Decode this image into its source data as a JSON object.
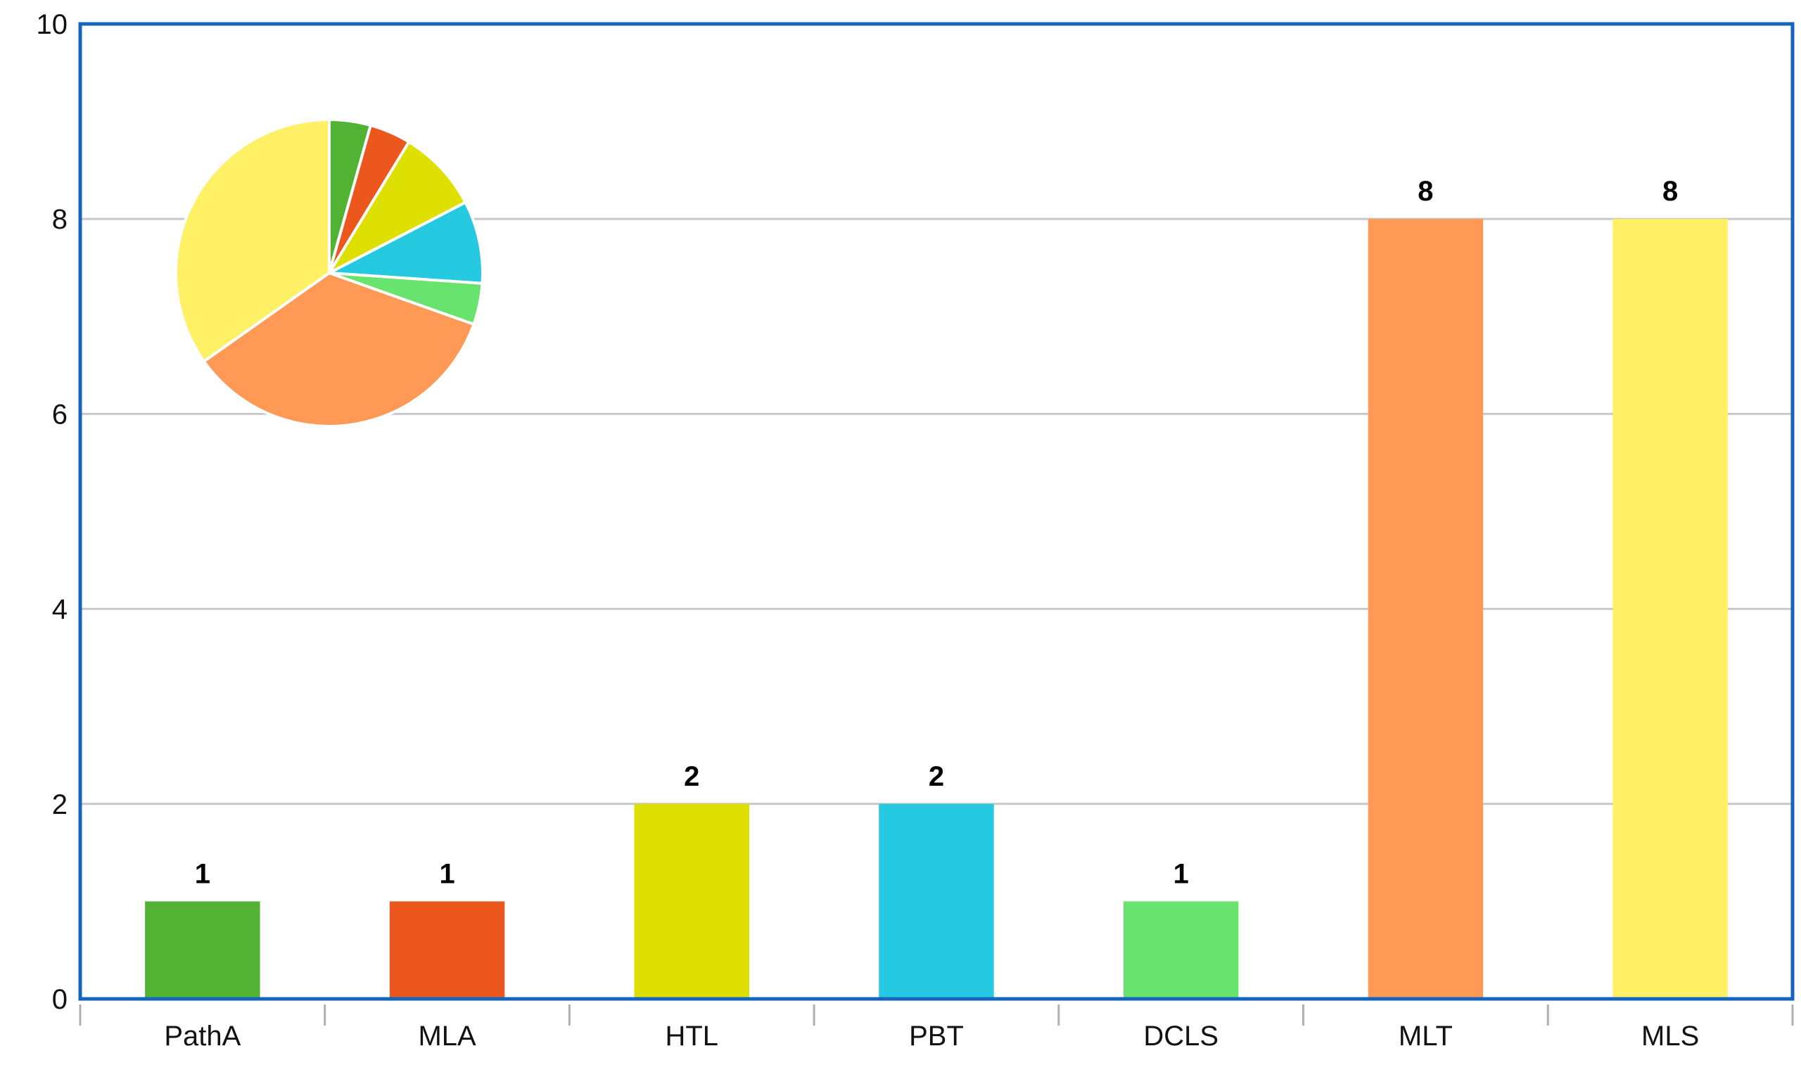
{
  "chart_data": [
    {
      "type": "bar",
      "categories": [
        "PathA",
        "MLA",
        "HTL",
        "PBT",
        "DCLS",
        "MLT",
        "MLS"
      ],
      "values": [
        1,
        1,
        2,
        2,
        1,
        8,
        8
      ],
      "data_labels": [
        "1",
        "1",
        "2",
        "2",
        "1",
        "8",
        "8"
      ],
      "colors": [
        "#52b233",
        "#eb571d",
        "#dde000",
        "#26cae0",
        "#68e36d",
        "#ff9955",
        "#fff066"
      ],
      "title": "",
      "xlabel": "",
      "ylabel": "",
      "ylim": [
        0,
        10
      ],
      "yticks": [
        "0",
        "2",
        "4",
        "6",
        "8",
        "10"
      ],
      "grid": true,
      "frame_color": "#1565c0",
      "grid_color": "#c8c8c8"
    },
    {
      "type": "pie",
      "categories": [
        "PathA",
        "MLA",
        "HTL",
        "PBT",
        "DCLS",
        "MLT",
        "MLS"
      ],
      "values": [
        1,
        1,
        2,
        2,
        1,
        8,
        8
      ],
      "colors": [
        "#52b233",
        "#eb571d",
        "#dde000",
        "#26cae0",
        "#68e36d",
        "#ff9955",
        "#fff066"
      ],
      "placement": "top-left inset"
    }
  ]
}
